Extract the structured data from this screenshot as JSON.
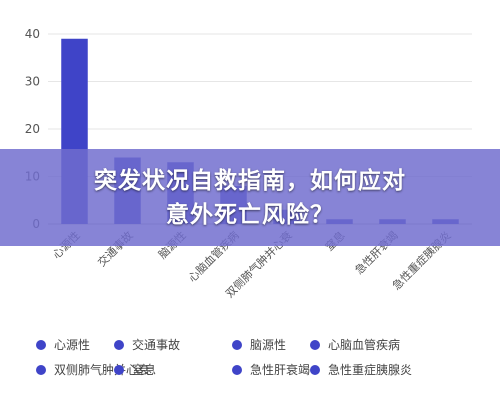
{
  "colors": {
    "series": "#3f44c8",
    "grid": "#e6e6e6",
    "axis": "#bfbfbf",
    "banner_overlay": "#706cce"
  },
  "chart_data": {
    "type": "bar",
    "categories": [
      "心源性",
      "交通事故",
      "脑源性",
      "心脑血管疾病",
      "双侧肺气肿并心衰",
      "窒息",
      "急性肝衰竭",
      "急性重症胰腺炎"
    ],
    "values": [
      39,
      14,
      13,
      8,
      3,
      1,
      1,
      1
    ],
    "ylim": [
      0,
      40
    ],
    "yticks": [
      0,
      10,
      20,
      30,
      40
    ],
    "title": "",
    "xlabel": "",
    "ylabel": "",
    "grid": true,
    "legend_position": "bottom"
  },
  "banner": {
    "line1": "突发状况自救指南，如何应对",
    "line2": "意外死亡风险？"
  }
}
